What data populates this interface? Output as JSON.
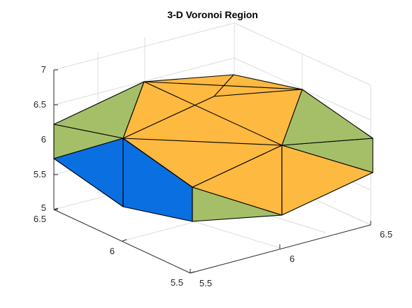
{
  "chart_data": {
    "type": "3d-polyhedron",
    "title": "3-D Voronoi Region",
    "axes": {
      "x": {
        "ticks": [
          "5.5",
          "6",
          "6.5"
        ],
        "range": [
          5.5,
          6.5
        ]
      },
      "y": {
        "ticks": [
          "5.5",
          "6",
          "6.5"
        ],
        "range": [
          5.5,
          6.5
        ]
      },
      "z": {
        "ticks": [
          "5",
          "5.5",
          "6",
          "6.5",
          "7"
        ],
        "range": [
          5,
          7
        ]
      }
    },
    "grid": true,
    "face_colors": {
      "orange": "#fdb940",
      "green": "#a5bf68",
      "blue": "#0a6fe0"
    },
    "faces": [
      {
        "color": "green",
        "label": "left upper side"
      },
      {
        "color": "green",
        "label": "left side"
      },
      {
        "color": "blue",
        "label": "front-left side"
      },
      {
        "color": "blue",
        "label": "front-left lower side"
      },
      {
        "color": "green",
        "label": "front side"
      },
      {
        "color": "orange",
        "label": "front-right side"
      },
      {
        "color": "orange",
        "label": "right lower side"
      },
      {
        "color": "green",
        "label": "right side"
      },
      {
        "color": "green",
        "label": "right upper side"
      },
      {
        "color": "orange",
        "label": "top"
      }
    ]
  }
}
